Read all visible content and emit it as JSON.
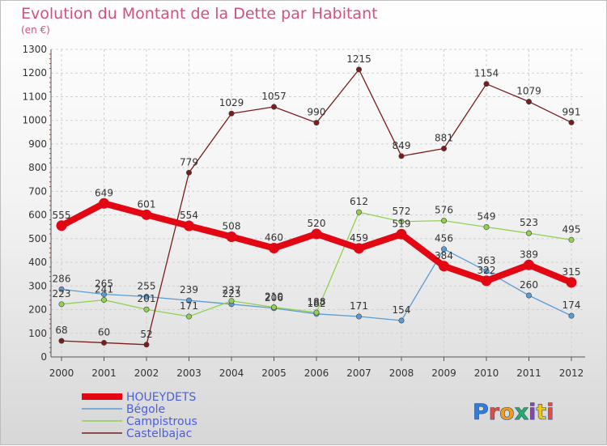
{
  "chart_data": {
    "type": "line",
    "title": "Evolution du Montant de la Dette par Habitant",
    "subtitle": "(en €)",
    "xlabel": "",
    "ylabel": "",
    "x": [
      "2000",
      "2001",
      "2002",
      "2003",
      "2004",
      "2005",
      "2006",
      "2007",
      "2008",
      "2009",
      "2010",
      "2011",
      "2012"
    ],
    "ylim": [
      0,
      1300
    ],
    "yticks": [
      0,
      100,
      200,
      300,
      400,
      500,
      600,
      700,
      800,
      900,
      1000,
      1100,
      1200,
      1300
    ],
    "grid": true,
    "legend_position": "bottom-left",
    "series": [
      {
        "name": "HOUEYDETS",
        "color": "#e30613",
        "values": [
          555,
          649,
          601,
          554,
          508,
          460,
          520,
          459,
          519,
          384,
          322,
          389,
          315
        ]
      },
      {
        "name": "Bégole",
        "color": "#5b9bd5",
        "values": [
          286,
          265,
          255,
          239,
          223,
          206,
          182,
          171,
          154,
          456,
          363,
          260,
          174
        ]
      },
      {
        "name": "Campistrous",
        "color": "#92d050",
        "values": [
          223,
          241,
          201,
          171,
          237,
          210,
          188,
          612,
          572,
          576,
          549,
          523,
          495
        ]
      },
      {
        "name": "Castelbajac",
        "color": "#7b1c1c",
        "values": [
          68,
          60,
          52,
          779,
          1029,
          1057,
          990,
          1215,
          849,
          881,
          1154,
          1079,
          991
        ]
      }
    ]
  },
  "logo": {
    "text": "Proxiti"
  }
}
